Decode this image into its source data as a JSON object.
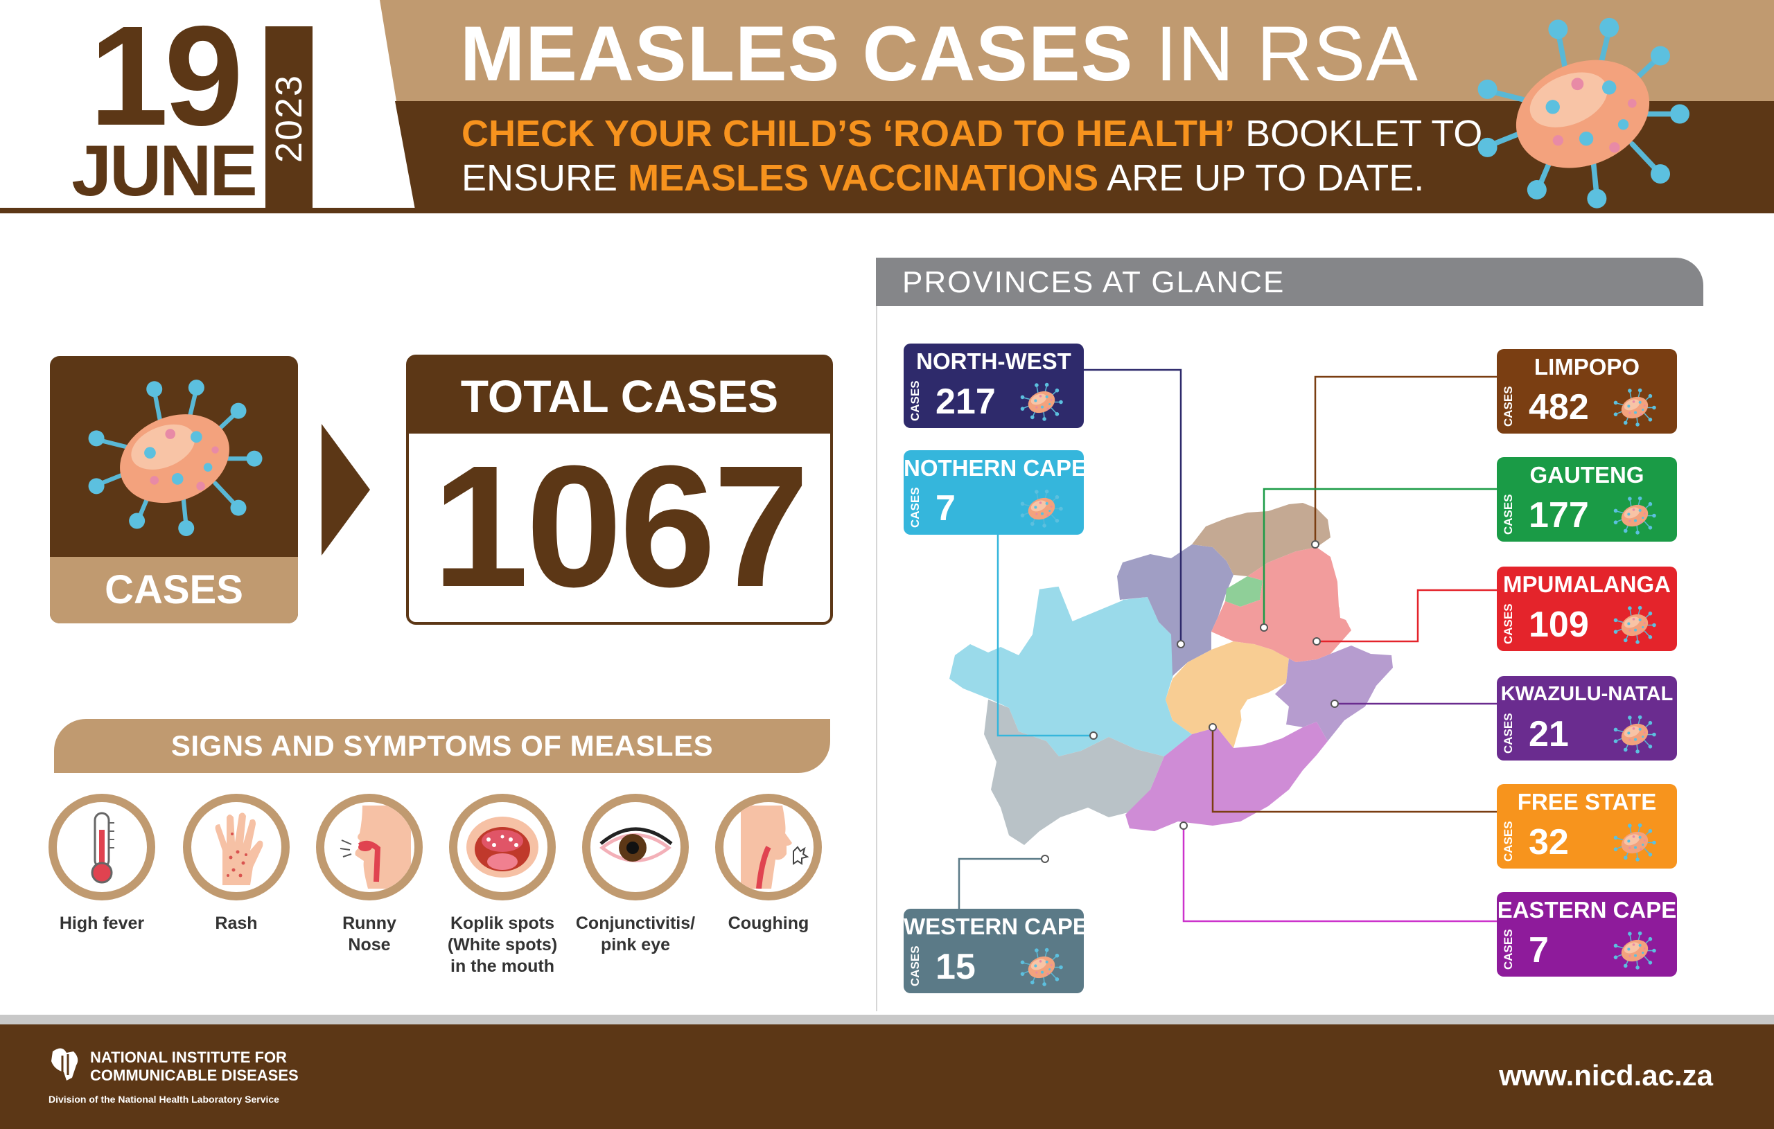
{
  "header": {
    "day": "19",
    "month": "JUNE",
    "year": "2023",
    "title_bold": "MEASLES CASES",
    "title_light": "IN RSA",
    "subtitle": {
      "line1_highlight": "CHECK YOUR CHILD’S ‘ROAD TO HEALTH’",
      "line1_rest": "BOOKLET TO",
      "line2_start": "ENSURE",
      "line2_highlight": "MEASLES VACCINATIONS",
      "line2_rest": "ARE UP TO DATE."
    }
  },
  "cases_tile": {
    "label": "CASES",
    "icon": "virus-icon"
  },
  "total": {
    "label": "TOTAL CASES",
    "value": "1067"
  },
  "symptoms": {
    "title": "SIGNS AND SYMPTOMS OF MEASLES",
    "items": [
      {
        "icon": "thermometer-icon",
        "line1": "High fever",
        "line2": "",
        "line3": ""
      },
      {
        "icon": "hand-rash-icon",
        "line1": "Rash",
        "line2": "",
        "line3": ""
      },
      {
        "icon": "nose-icon",
        "line1": "Runny",
        "line2": "Nose",
        "line3": ""
      },
      {
        "icon": "mouth-icon",
        "line1": "Koplik spots",
        "line2": "(White spots)",
        "line3": "in the mouth"
      },
      {
        "icon": "eye-icon",
        "line1": "Conjunctivitis/",
        "line2": "pink eye",
        "line3": ""
      },
      {
        "icon": "cough-icon",
        "line1": "Coughing",
        "line2": "",
        "line3": ""
      }
    ]
  },
  "provinces": {
    "title": "PROVINCES AT GLANCE",
    "cases_label": "CASES",
    "items": [
      {
        "name": "NORTH-WEST",
        "value": "217",
        "color": "#2e2a6b"
      },
      {
        "name": "NOTHERN CAPE",
        "value": "7",
        "color": "#35b6dc"
      },
      {
        "name": "WESTERN CAPE",
        "value": "15",
        "color": "#5b7a87"
      },
      {
        "name": "LIMPOPO",
        "value": "482",
        "color": "#7a3e12"
      },
      {
        "name": "GAUTENG",
        "value": "177",
        "color": "#1a9b46"
      },
      {
        "name": "MPUMALANGA",
        "value": "109",
        "color": "#e4242b"
      },
      {
        "name": "KWAZULU-NATAL",
        "value": "21",
        "color": "#6a2c8f"
      },
      {
        "name": "FREE STATE",
        "value": "32",
        "color": "#f7941d"
      },
      {
        "name": "EASTERN CAPE",
        "value": "7",
        "color": "#8e1b9b"
      }
    ]
  },
  "footer": {
    "logo_line1": "NATIONAL INSTITUTE FOR",
    "logo_line2": "COMMUNICABLE DISEASES",
    "logo_sub": "Division of the National Health Laboratory Service",
    "website": "www.nicd.ac.za"
  }
}
